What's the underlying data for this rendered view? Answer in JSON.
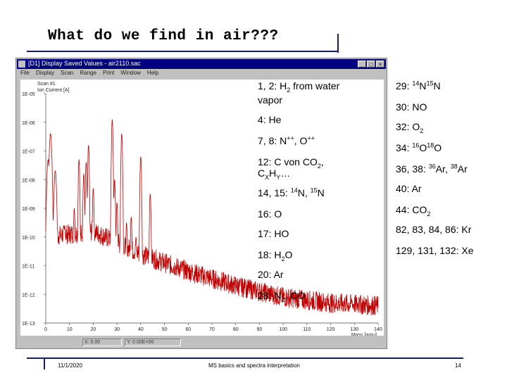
{
  "slide": {
    "title": "What do we find in air???",
    "footer_date": "11/1/2020",
    "footer_center": "MS basics and spectra interpretation",
    "page_number": "14"
  },
  "window": {
    "title": "[D1] Display Saved Values - air2110.sac",
    "menu": [
      "File",
      "Display",
      "Scan",
      "Range",
      "Print",
      "Window",
      "Help"
    ],
    "status": [
      "X: 0.00",
      "Y: 0.00E+00"
    ],
    "colors": {
      "titlebar": "#000080",
      "trace": "#c00000"
    }
  },
  "left_notes": [
    {
      "parts": [
        [
          "1, 2: H",
          ""
        ],
        [
          "2",
          "sub"
        ],
        [
          " from water",
          ""
        ]
      ]
    },
    {
      "parts": [
        [
          "vapor",
          ""
        ]
      ]
    },
    {
      "parts": [
        [
          "4: He",
          ""
        ]
      ]
    },
    {
      "parts": [
        [
          "7, 8: N",
          ""
        ],
        [
          "++",
          "sup"
        ],
        [
          ", O",
          ""
        ],
        [
          "++",
          "sup"
        ]
      ]
    },
    {
      "parts": [
        [
          "12: C von CO",
          ""
        ],
        [
          "2",
          "sub"
        ],
        [
          ",",
          ""
        ]
      ]
    },
    {
      "parts": [
        [
          "C",
          ""
        ],
        [
          "X",
          "sub"
        ],
        [
          "H",
          ""
        ],
        [
          "Y",
          "sub"
        ],
        [
          "…",
          ""
        ]
      ]
    },
    {
      "parts": [
        [
          "14, 15: ",
          ""
        ],
        [
          "14",
          "sup"
        ],
        [
          "N, ",
          ""
        ],
        [
          "15",
          "sup"
        ],
        [
          "N",
          ""
        ]
      ]
    },
    {
      "parts": [
        [
          "16: O",
          ""
        ]
      ]
    },
    {
      "parts": [
        [
          "17: HO",
          ""
        ]
      ]
    },
    {
      "parts": [
        [
          "18: H",
          ""
        ],
        [
          "2",
          "sub"
        ],
        [
          "O",
          ""
        ]
      ]
    },
    {
      "parts": [
        [
          "20: Ar",
          ""
        ]
      ]
    },
    {
      "parts": [
        [
          "28: N",
          ""
        ],
        [
          "2",
          "sub"
        ],
        [
          ", CO",
          ""
        ]
      ]
    }
  ],
  "right_notes": [
    {
      "parts": [
        [
          "29: ",
          ""
        ],
        [
          "14",
          "sup"
        ],
        [
          "N",
          ""
        ],
        [
          "15",
          "sup"
        ],
        [
          "N",
          ""
        ]
      ]
    },
    {
      "parts": [
        [
          "30: NO",
          ""
        ]
      ]
    },
    {
      "parts": [
        [
          "32: O",
          ""
        ],
        [
          "2",
          "sub"
        ]
      ]
    },
    {
      "parts": [
        [
          "34: ",
          ""
        ],
        [
          "16",
          "sup"
        ],
        [
          "O",
          ""
        ],
        [
          "18",
          "sup"
        ],
        [
          "O",
          ""
        ]
      ]
    },
    {
      "parts": [
        [
          "36, 38: ",
          ""
        ],
        [
          "36",
          "sup"
        ],
        [
          "Ar, ",
          ""
        ],
        [
          "38",
          "sup"
        ],
        [
          "Ar",
          ""
        ]
      ]
    },
    {
      "parts": [
        [
          "40: Ar",
          ""
        ]
      ]
    },
    {
      "parts": [
        [
          "44: CO",
          ""
        ],
        [
          "2",
          "sub"
        ]
      ]
    },
    {
      "parts": [
        [
          "82, 83, 84, 86: Kr",
          ""
        ]
      ]
    },
    {
      "parts": [
        [
          "129, 131, 132: Xe",
          ""
        ]
      ]
    }
  ],
  "chart_data": {
    "type": "line",
    "title": "Scan #1",
    "ylabel": "Ion Current [A]",
    "xlabel": "Mass [amu]",
    "xlim": [
      0,
      140
    ],
    "x_ticks": [
      "0",
      "10",
      "20",
      "30",
      "40",
      "50",
      "60",
      "70",
      "80",
      "90",
      "100",
      "110",
      "120",
      "130",
      "140"
    ],
    "y_scale": "log",
    "y_ticks": [
      "1E-05",
      "1E-06",
      "1E-07",
      "1E-08",
      "1E-09",
      "1E-10",
      "1E-11",
      "1E-12",
      "1E-13"
    ],
    "ylim_exp": [
      -13,
      -5
    ],
    "series": [
      {
        "peaks_mass": [
          1,
          2,
          4,
          7,
          8,
          12,
          14,
          15,
          16,
          17,
          18,
          20,
          28,
          29,
          30,
          32,
          34,
          36,
          38,
          40,
          44,
          82,
          84,
          86,
          129,
          132
        ],
        "peaks_log10": [
          -7.3,
          -6.4,
          -7.7,
          -10.1,
          -9.6,
          -9.0,
          -7.3,
          -9.9,
          -7.8,
          -7.4,
          -6.8,
          -8.3,
          -5.9,
          -8.0,
          -8.8,
          -6.4,
          -9.5,
          -9.3,
          -10.0,
          -7.2,
          -8.5,
          -11.9,
          -11.5,
          -11.8,
          -12.2,
          -12.1
        ],
        "baseline_log10": [
          -10.0,
          -9.8,
          -10.6,
          -11.2,
          -11.7,
          -12.1,
          -12.3,
          -12.4
        ]
      }
    ]
  }
}
